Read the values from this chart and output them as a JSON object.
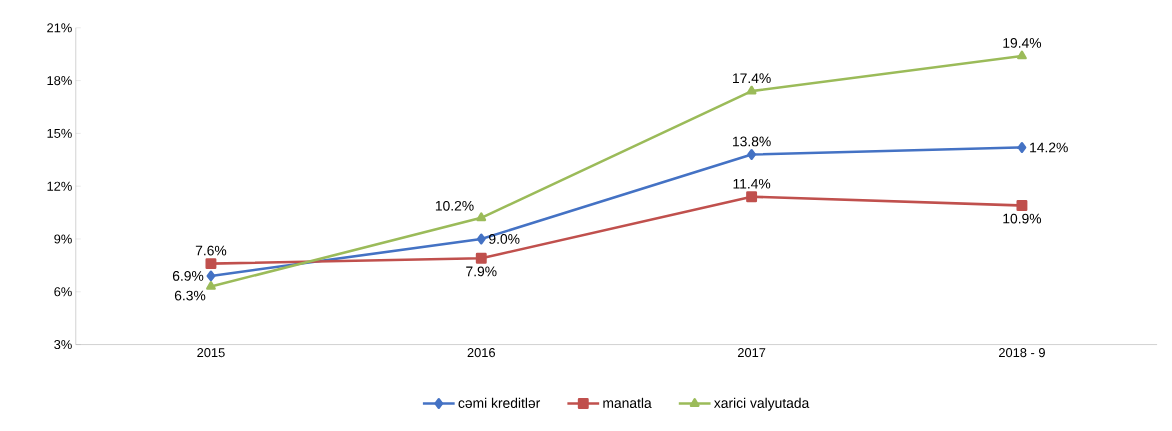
{
  "chart_data": {
    "type": "line",
    "categories": [
      "2015",
      "2016",
      "2017",
      "2018 - 9"
    ],
    "series": [
      {
        "name": "cəmi kreditlər",
        "color": "#4472c4",
        "marker": "diamond",
        "values": [
          6.9,
          9.0,
          13.8,
          14.2
        ],
        "value_labels": [
          "6.9%",
          "9.0%",
          "13.8%",
          "14.2%"
        ]
      },
      {
        "name": "manatla",
        "color": "#c0504d",
        "marker": "square",
        "values": [
          7.6,
          7.9,
          11.4,
          10.9
        ],
        "value_labels": [
          "7.6%",
          "7.9%",
          "11.4%",
          "10.9%"
        ]
      },
      {
        "name": "xarici valyutada",
        "color": "#9bbb59",
        "marker": "triangle",
        "values": [
          6.3,
          10.2,
          17.4,
          19.4
        ],
        "value_labels": [
          "6.3%",
          "10.2%",
          "17.4%",
          "19.4%"
        ]
      }
    ],
    "ylim": [
      3,
      21
    ],
    "yticks": [
      {
        "value": 3,
        "label": "3%"
      },
      {
        "value": 6,
        "label": "6%"
      },
      {
        "value": 9,
        "label": "9%"
      },
      {
        "value": 12,
        "label": "12%"
      },
      {
        "value": 15,
        "label": "15%"
      },
      {
        "value": 18,
        "label": "18%"
      },
      {
        "value": 21,
        "label": "21%"
      }
    ],
    "grid": false,
    "legend": "bottom",
    "line_style": "solid"
  }
}
